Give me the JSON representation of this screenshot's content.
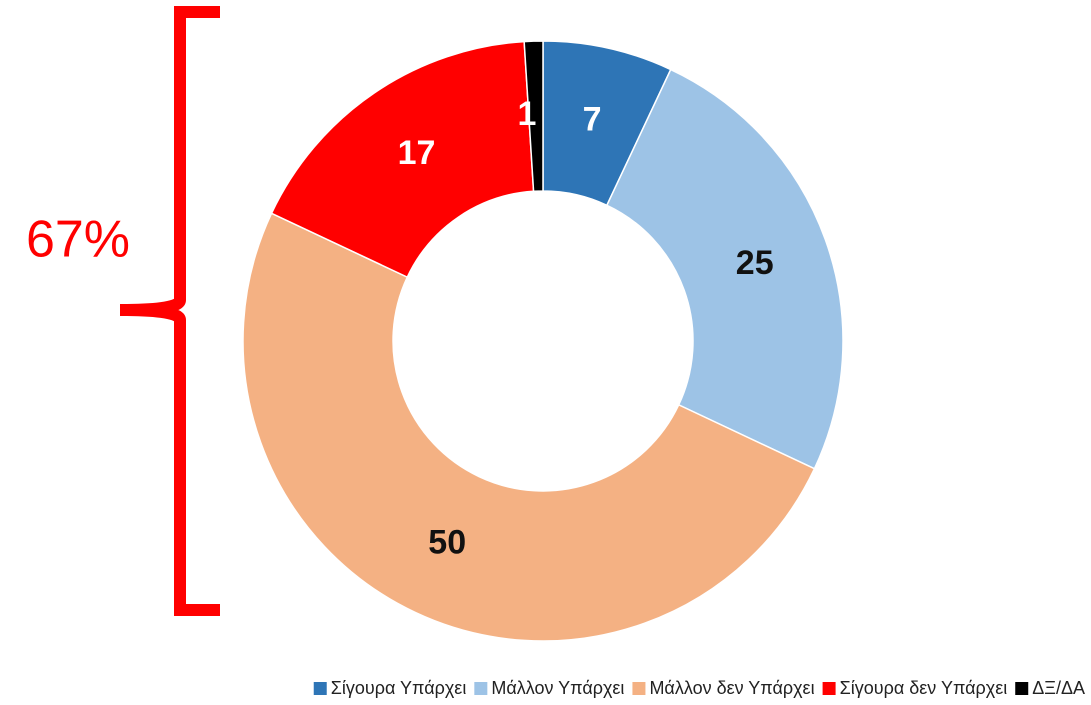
{
  "chart_data": {
    "type": "donut",
    "categories": [
      "Σίγουρα Υπάρχει",
      "Μάλλον Υπάρχει",
      "Μάλλον δεν Υπάρχει",
      "Σίγουρα δεν Υπάρχει",
      "ΔΞ/ΔΑ"
    ],
    "values": [
      7,
      25,
      50,
      17,
      1
    ],
    "colors": [
      "#2e75b6",
      "#9dc3e6",
      "#f4b183",
      "#ff0000",
      "#000000"
    ],
    "annotation": "67%",
    "legend": "bottom"
  }
}
